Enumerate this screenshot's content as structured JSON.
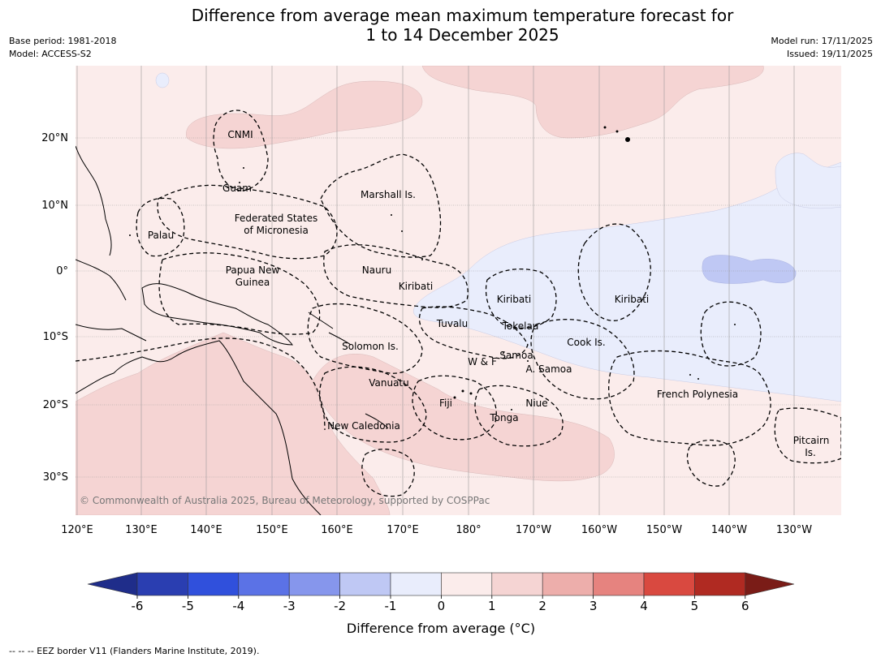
{
  "title_line1": "Difference from average mean maximum temperature forecast for",
  "title_line2": "1 to 14 December 2025",
  "base_period": "Base period: 1981-2018",
  "model": "Model: ACCESS-S2",
  "model_run": "Model run: 17/11/2025",
  "issued": "Issued: 19/11/2025",
  "copyright": "© Commonwealth of Australia 2025, Bureau of Meteorology, supported by COSPPac",
  "footer": "--  --  -- EEZ border V11 (Flanders Marine Institute, 2019).",
  "map": {
    "lat_ticks": [
      "20°N",
      "10°N",
      "0°",
      "10°S",
      "20°S",
      "30°S"
    ],
    "lon_ticks": [
      "120°E",
      "130°E",
      "140°E",
      "150°E",
      "160°E",
      "170°E",
      "180°",
      "170°W",
      "160°W",
      "150°W",
      "140°W",
      "130°W"
    ],
    "region_labels": [
      "CNMI",
      "Guam",
      "Marshall Is.",
      "Palau",
      "Federated States",
      "of Micronesia",
      "Papua New",
      "Guinea",
      "Nauru",
      "Kiribati",
      "Kiribati",
      "Kiribati",
      "Tuvalu",
      "Tokelau",
      "Cook Is.",
      "Solomon Is.",
      "W & F",
      "Samoa",
      "A. Samoa",
      "Vanuatu",
      "Fiji",
      "Niue",
      "Tonga",
      "French Polynesia",
      "New Caledonia",
      "Pitcairn",
      "Is."
    ]
  },
  "colorbar": {
    "label": "Difference from average (°C)",
    "ticks": [
      "-6",
      "-5",
      "-4",
      "-3",
      "-2",
      "-1",
      "0",
      "1",
      "2",
      "3",
      "4",
      "5",
      "6"
    ],
    "colors": [
      "#1f2d8a",
      "#2a3eb1",
      "#3050dc",
      "#5b72e6",
      "#8696ec",
      "#bfc8f4",
      "#e9edfc",
      "#fbeceb",
      "#f5d4d3",
      "#edaeab",
      "#e6837f",
      "#d94940",
      "#b02a22",
      "#7a1c17"
    ]
  }
}
